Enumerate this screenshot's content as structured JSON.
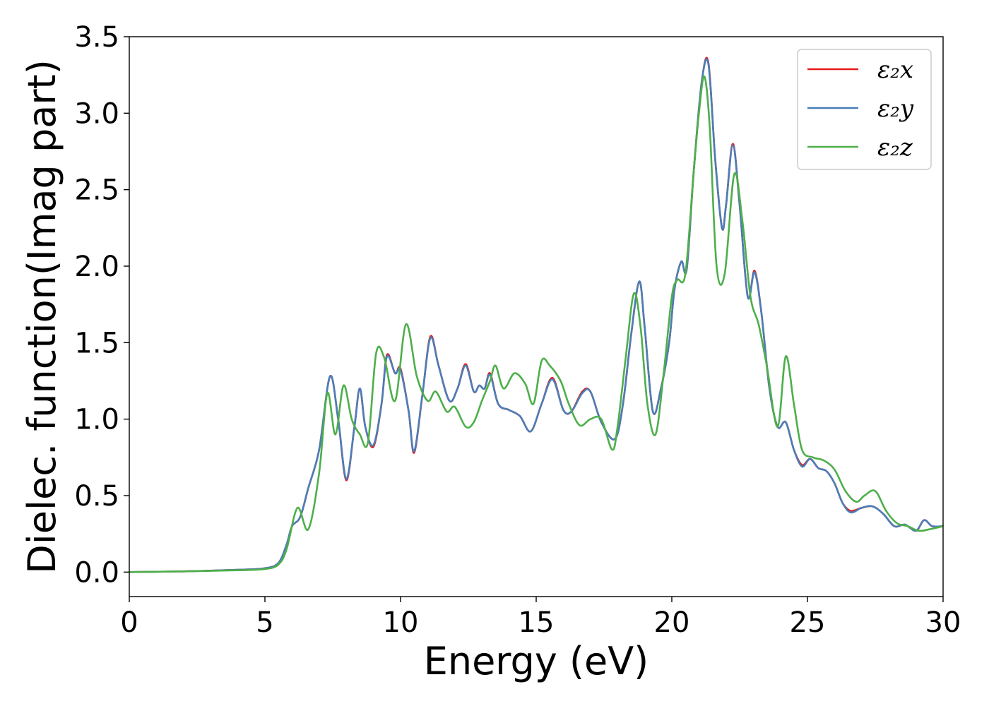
{
  "chart_data": {
    "type": "line",
    "title": "",
    "xlabel": "Energy (eV)",
    "ylabel": "Dielec. function(Imag part)",
    "xlim": [
      0,
      30
    ],
    "ylim": [
      -0.16,
      3.5
    ],
    "xticks": [
      0,
      5,
      10,
      15,
      20,
      25,
      30
    ],
    "xtick_labels": [
      "0",
      "5",
      "10",
      "15",
      "20",
      "25",
      "30"
    ],
    "yticks": [
      0.0,
      0.5,
      1.0,
      1.5,
      2.0,
      2.5,
      3.0,
      3.5
    ],
    "ytick_labels": [
      "0.0",
      "0.5",
      "1.0",
      "1.5",
      "2.0",
      "2.5",
      "3.0",
      "3.5"
    ],
    "grid": false,
    "legend_position": "top-right",
    "series": [
      {
        "name": "ε₂x",
        "color": "#e41a1c",
        "x": [
          0,
          2,
          4,
          5,
          5.5,
          5.8,
          6.0,
          6.3,
          6.6,
          7.0,
          7.4,
          7.7,
          8.0,
          8.3,
          8.5,
          8.7,
          9.0,
          9.3,
          9.5,
          9.8,
          10.0,
          10.3,
          10.5,
          10.8,
          11.1,
          11.4,
          11.8,
          12.1,
          12.4,
          12.7,
          12.9,
          13.1,
          13.3,
          13.6,
          14.0,
          14.4,
          14.8,
          15.2,
          15.6,
          16.0,
          16.3,
          16.7,
          17.0,
          17.4,
          17.9,
          18.2,
          18.5,
          18.8,
          19.0,
          19.3,
          19.6,
          19.9,
          20.1,
          20.35,
          20.55,
          20.8,
          21.1,
          21.35,
          21.6,
          21.85,
          22.0,
          22.25,
          22.5,
          22.8,
          23.05,
          23.3,
          23.6,
          23.9,
          24.2,
          24.5,
          24.8,
          25.1,
          25.4,
          25.7,
          26.0,
          26.3,
          26.6,
          27.0,
          27.4,
          27.8,
          28.2,
          28.6,
          29.0,
          29.3,
          29.6,
          30.0
        ],
        "y": [
          0.0,
          0.005,
          0.015,
          0.025,
          0.06,
          0.18,
          0.3,
          0.36,
          0.55,
          0.8,
          1.28,
          1.0,
          0.6,
          0.95,
          1.2,
          0.95,
          0.82,
          1.1,
          1.42,
          1.3,
          1.33,
          1.05,
          0.78,
          1.15,
          1.54,
          1.35,
          1.12,
          1.2,
          1.36,
          1.18,
          1.22,
          1.2,
          1.3,
          1.1,
          1.06,
          1.02,
          0.92,
          1.1,
          1.27,
          1.06,
          1.05,
          1.18,
          1.18,
          0.98,
          0.87,
          1.1,
          1.55,
          1.9,
          1.6,
          1.05,
          1.2,
          1.5,
          1.85,
          2.03,
          1.98,
          2.6,
          3.2,
          3.33,
          2.7,
          2.25,
          2.4,
          2.8,
          2.4,
          1.8,
          1.97,
          1.7,
          1.2,
          0.95,
          0.98,
          0.8,
          0.7,
          0.74,
          0.68,
          0.66,
          0.58,
          0.45,
          0.4,
          0.42,
          0.43,
          0.38,
          0.3,
          0.31,
          0.27,
          0.34,
          0.3,
          0.3
        ]
      },
      {
        "name": "ε₂y",
        "color": "#4a7eb8",
        "x": [
          0,
          2,
          4,
          5,
          5.5,
          5.8,
          6.0,
          6.3,
          6.6,
          7.0,
          7.4,
          7.7,
          8.0,
          8.3,
          8.5,
          8.7,
          9.0,
          9.3,
          9.5,
          9.8,
          10.0,
          10.3,
          10.5,
          10.8,
          11.1,
          11.4,
          11.8,
          12.1,
          12.4,
          12.7,
          12.9,
          13.1,
          13.3,
          13.6,
          14.0,
          14.4,
          14.8,
          15.2,
          15.6,
          16.0,
          16.3,
          16.7,
          17.0,
          17.4,
          17.9,
          18.2,
          18.5,
          18.8,
          19.0,
          19.3,
          19.6,
          19.9,
          20.1,
          20.35,
          20.55,
          20.8,
          21.1,
          21.35,
          21.6,
          21.85,
          22.0,
          22.25,
          22.5,
          22.8,
          23.05,
          23.3,
          23.6,
          23.9,
          24.2,
          24.5,
          24.8,
          25.1,
          25.4,
          25.7,
          26.0,
          26.3,
          26.6,
          27.0,
          27.4,
          27.8,
          28.2,
          28.6,
          29.0,
          29.3,
          29.6,
          30.0
        ],
        "y": [
          0.0,
          0.005,
          0.015,
          0.025,
          0.06,
          0.18,
          0.3,
          0.36,
          0.55,
          0.8,
          1.28,
          1.0,
          0.61,
          0.95,
          1.2,
          0.95,
          0.83,
          1.1,
          1.41,
          1.3,
          1.32,
          1.05,
          0.79,
          1.15,
          1.53,
          1.35,
          1.12,
          1.2,
          1.35,
          1.18,
          1.22,
          1.2,
          1.29,
          1.1,
          1.06,
          1.02,
          0.92,
          1.1,
          1.26,
          1.06,
          1.05,
          1.17,
          1.18,
          0.98,
          0.87,
          1.1,
          1.55,
          1.9,
          1.6,
          1.05,
          1.2,
          1.5,
          1.85,
          2.03,
          1.98,
          2.6,
          3.2,
          3.32,
          2.7,
          2.25,
          2.4,
          2.79,
          2.4,
          1.8,
          1.96,
          1.7,
          1.2,
          0.95,
          0.98,
          0.8,
          0.69,
          0.74,
          0.68,
          0.66,
          0.58,
          0.45,
          0.39,
          0.42,
          0.43,
          0.38,
          0.3,
          0.31,
          0.27,
          0.34,
          0.3,
          0.3
        ]
      },
      {
        "name": "ε₂z",
        "color": "#4daf4a",
        "x": [
          0,
          2,
          4,
          5,
          5.5,
          5.8,
          6.2,
          6.6,
          7.0,
          7.3,
          7.6,
          7.9,
          8.2,
          8.5,
          8.8,
          9.1,
          9.4,
          9.8,
          10.2,
          10.6,
          11.0,
          11.3,
          11.7,
          12.0,
          12.4,
          12.7,
          13.0,
          13.3,
          13.5,
          13.8,
          14.2,
          14.6,
          14.9,
          15.2,
          15.5,
          15.9,
          16.2,
          16.6,
          17.0,
          17.4,
          17.8,
          18.0,
          18.3,
          18.6,
          18.85,
          19.1,
          19.4,
          19.7,
          20.0,
          20.2,
          20.5,
          20.8,
          21.0,
          21.2,
          21.4,
          21.65,
          21.95,
          22.3,
          22.6,
          22.9,
          23.2,
          23.5,
          23.9,
          24.2,
          24.5,
          24.8,
          25.2,
          25.6,
          26.0,
          26.4,
          26.8,
          27.1,
          27.5,
          27.9,
          28.3,
          28.7,
          29.1,
          29.5,
          30.0
        ],
        "y": [
          0.0,
          0.005,
          0.012,
          0.02,
          0.05,
          0.15,
          0.42,
          0.28,
          0.65,
          1.17,
          0.9,
          1.22,
          1.0,
          0.9,
          0.85,
          1.43,
          1.4,
          1.12,
          1.62,
          1.28,
          1.12,
          1.18,
          1.05,
          1.08,
          0.95,
          0.98,
          1.12,
          1.25,
          1.35,
          1.2,
          1.3,
          1.23,
          1.1,
          1.38,
          1.35,
          1.25,
          1.1,
          0.96,
          1.0,
          1.0,
          0.8,
          0.95,
          1.4,
          1.82,
          1.6,
          1.1,
          0.9,
          1.3,
          1.8,
          1.91,
          1.95,
          2.6,
          3.0,
          3.24,
          2.9,
          2.0,
          1.95,
          2.6,
          2.3,
          1.8,
          1.62,
          1.35,
          0.95,
          1.41,
          1.1,
          0.8,
          0.75,
          0.73,
          0.67,
          0.53,
          0.46,
          0.5,
          0.53,
          0.4,
          0.32,
          0.3,
          0.27,
          0.28,
          0.3
        ]
      }
    ]
  }
}
